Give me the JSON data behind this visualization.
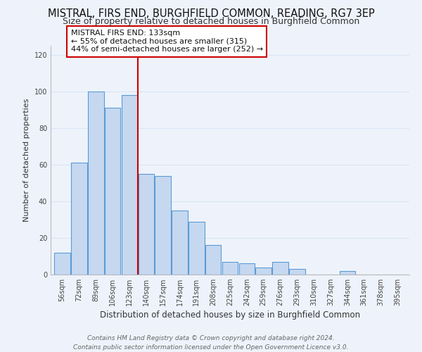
{
  "title": "MISTRAL, FIRS END, BURGHFIELD COMMON, READING, RG7 3EP",
  "subtitle": "Size of property relative to detached houses in Burghfield Common",
  "xlabel": "Distribution of detached houses by size in Burghfield Common",
  "ylabel": "Number of detached properties",
  "bin_labels": [
    "56sqm",
    "72sqm",
    "89sqm",
    "106sqm",
    "123sqm",
    "140sqm",
    "157sqm",
    "174sqm",
    "191sqm",
    "208sqm",
    "225sqm",
    "242sqm",
    "259sqm",
    "276sqm",
    "293sqm",
    "310sqm",
    "327sqm",
    "344sqm",
    "361sqm",
    "378sqm",
    "395sqm"
  ],
  "bar_values": [
    12,
    61,
    100,
    91,
    98,
    55,
    54,
    35,
    29,
    16,
    7,
    6,
    4,
    7,
    3,
    0,
    0,
    2,
    0,
    0,
    0
  ],
  "bar_color": "#c5d8f0",
  "bar_edge_color": "#5b9bd5",
  "vline_x_index": 5,
  "vline_color": "#cc0000",
  "annotation_line1": "MISTRAL FIRS END: 133sqm",
  "annotation_line2": "← 55% of detached houses are smaller (315)",
  "annotation_line3": "44% of semi-detached houses are larger (252) →",
  "annotation_box_color": "#ffffff",
  "annotation_box_edge": "#cc0000",
  "ylim_max": 125,
  "yticks": [
    0,
    20,
    40,
    60,
    80,
    100,
    120
  ],
  "footer_line1": "Contains HM Land Registry data © Crown copyright and database right 2024.",
  "footer_line2": "Contains public sector information licensed under the Open Government Licence v3.0.",
  "background_color": "#eef3fb",
  "grid_color": "#d8e4f5",
  "title_fontsize": 10.5,
  "subtitle_fontsize": 9,
  "xlabel_fontsize": 8.5,
  "ylabel_fontsize": 8,
  "tick_fontsize": 7,
  "annotation_fontsize": 8,
  "footer_fontsize": 6.5
}
